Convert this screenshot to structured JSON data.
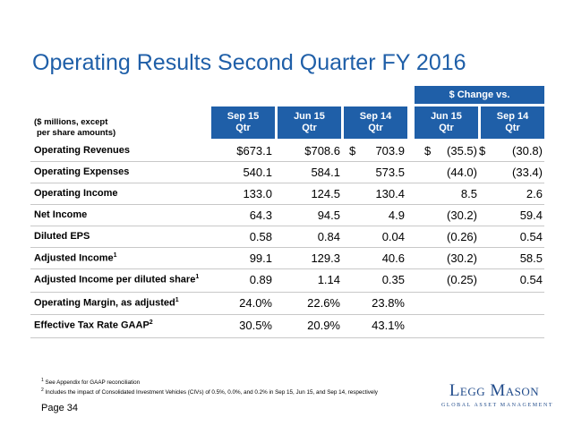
{
  "title": "Operating Results Second Quarter FY 2016",
  "units_label_line1": "($ millions, except",
  "units_label_line2": "per share amounts)",
  "change_header": "$ Change vs.",
  "columns": [
    {
      "line1": "Sep 15",
      "line2": "Qtr"
    },
    {
      "line1": "Jun 15",
      "line2": "Qtr"
    },
    {
      "line1": "Sep 14",
      "line2": "Qtr"
    },
    {
      "line1": "Jun 15",
      "line2": "Qtr"
    },
    {
      "line1": "Sep 14",
      "line2": "Qtr"
    }
  ],
  "rows": [
    {
      "label": "Operating Revenues",
      "sup": "",
      "c1": "$673.1",
      "c2": "$708.6",
      "c3_prefix": "$",
      "c3": "703.9",
      "c4_prefix": "$",
      "c4": "(35.5)",
      "c5_prefix": "$",
      "c5": "(30.8)"
    },
    {
      "label": "Operating Expenses",
      "sup": "",
      "c1": "540.1",
      "c2": "584.1",
      "c3": "573.5",
      "c4": "(44.0)",
      "c5": "(33.4)"
    },
    {
      "label": "Operating Income",
      "sup": "",
      "c1": "133.0",
      "c2": "124.5",
      "c3": "130.4",
      "c4": "8.5",
      "c5": "2.6"
    },
    {
      "label": "Net Income",
      "sup": "",
      "c1": "64.3",
      "c2": "94.5",
      "c3": "4.9",
      "c4": "(30.2)",
      "c5": "59.4"
    },
    {
      "label": "Diluted EPS",
      "sup": "",
      "c1": "0.58",
      "c2": "0.84",
      "c3": "0.04",
      "c4": "(0.26)",
      "c5": "0.54"
    },
    {
      "label": "Adjusted Income",
      "sup": "1",
      "c1": "99.1",
      "c2": "129.3",
      "c3": "40.6",
      "c4": "(30.2)",
      "c5": "58.5"
    },
    {
      "label": "Adjusted Income per diluted share",
      "sup": "1",
      "c1": "0.89",
      "c2": "1.14",
      "c3": "0.35",
      "c4": "(0.25)",
      "c5": "0.54"
    },
    {
      "label": "Operating Margin, as adjusted",
      "sup": "1",
      "c1": "24.0%",
      "c2": "22.6%",
      "c3": "23.8%",
      "c4": "",
      "c5": ""
    },
    {
      "label": "Effective Tax Rate GAAP",
      "sup": "2",
      "c1": "30.5%",
      "c2": "20.9%",
      "c3": "43.1%",
      "c4": "",
      "c5": ""
    }
  ],
  "footnotes": [
    {
      "sup": "1",
      "text": " See Appendix for GAAP reconciliation"
    },
    {
      "sup": "2",
      "text": " Includes the impact of Consolidated Investment Vehicles (CIVs) of  0.5%, 0.0%, and 0.2% in Sep 15, Jun 15, and Sep 14, respectively"
    }
  ],
  "page_label": "Page 34",
  "logo": {
    "name": "Legg Mason",
    "tagline": "GLOBAL ASSET MANAGEMENT",
    "color": "#1f4a8a"
  },
  "accent_color": "#1f5fa8"
}
